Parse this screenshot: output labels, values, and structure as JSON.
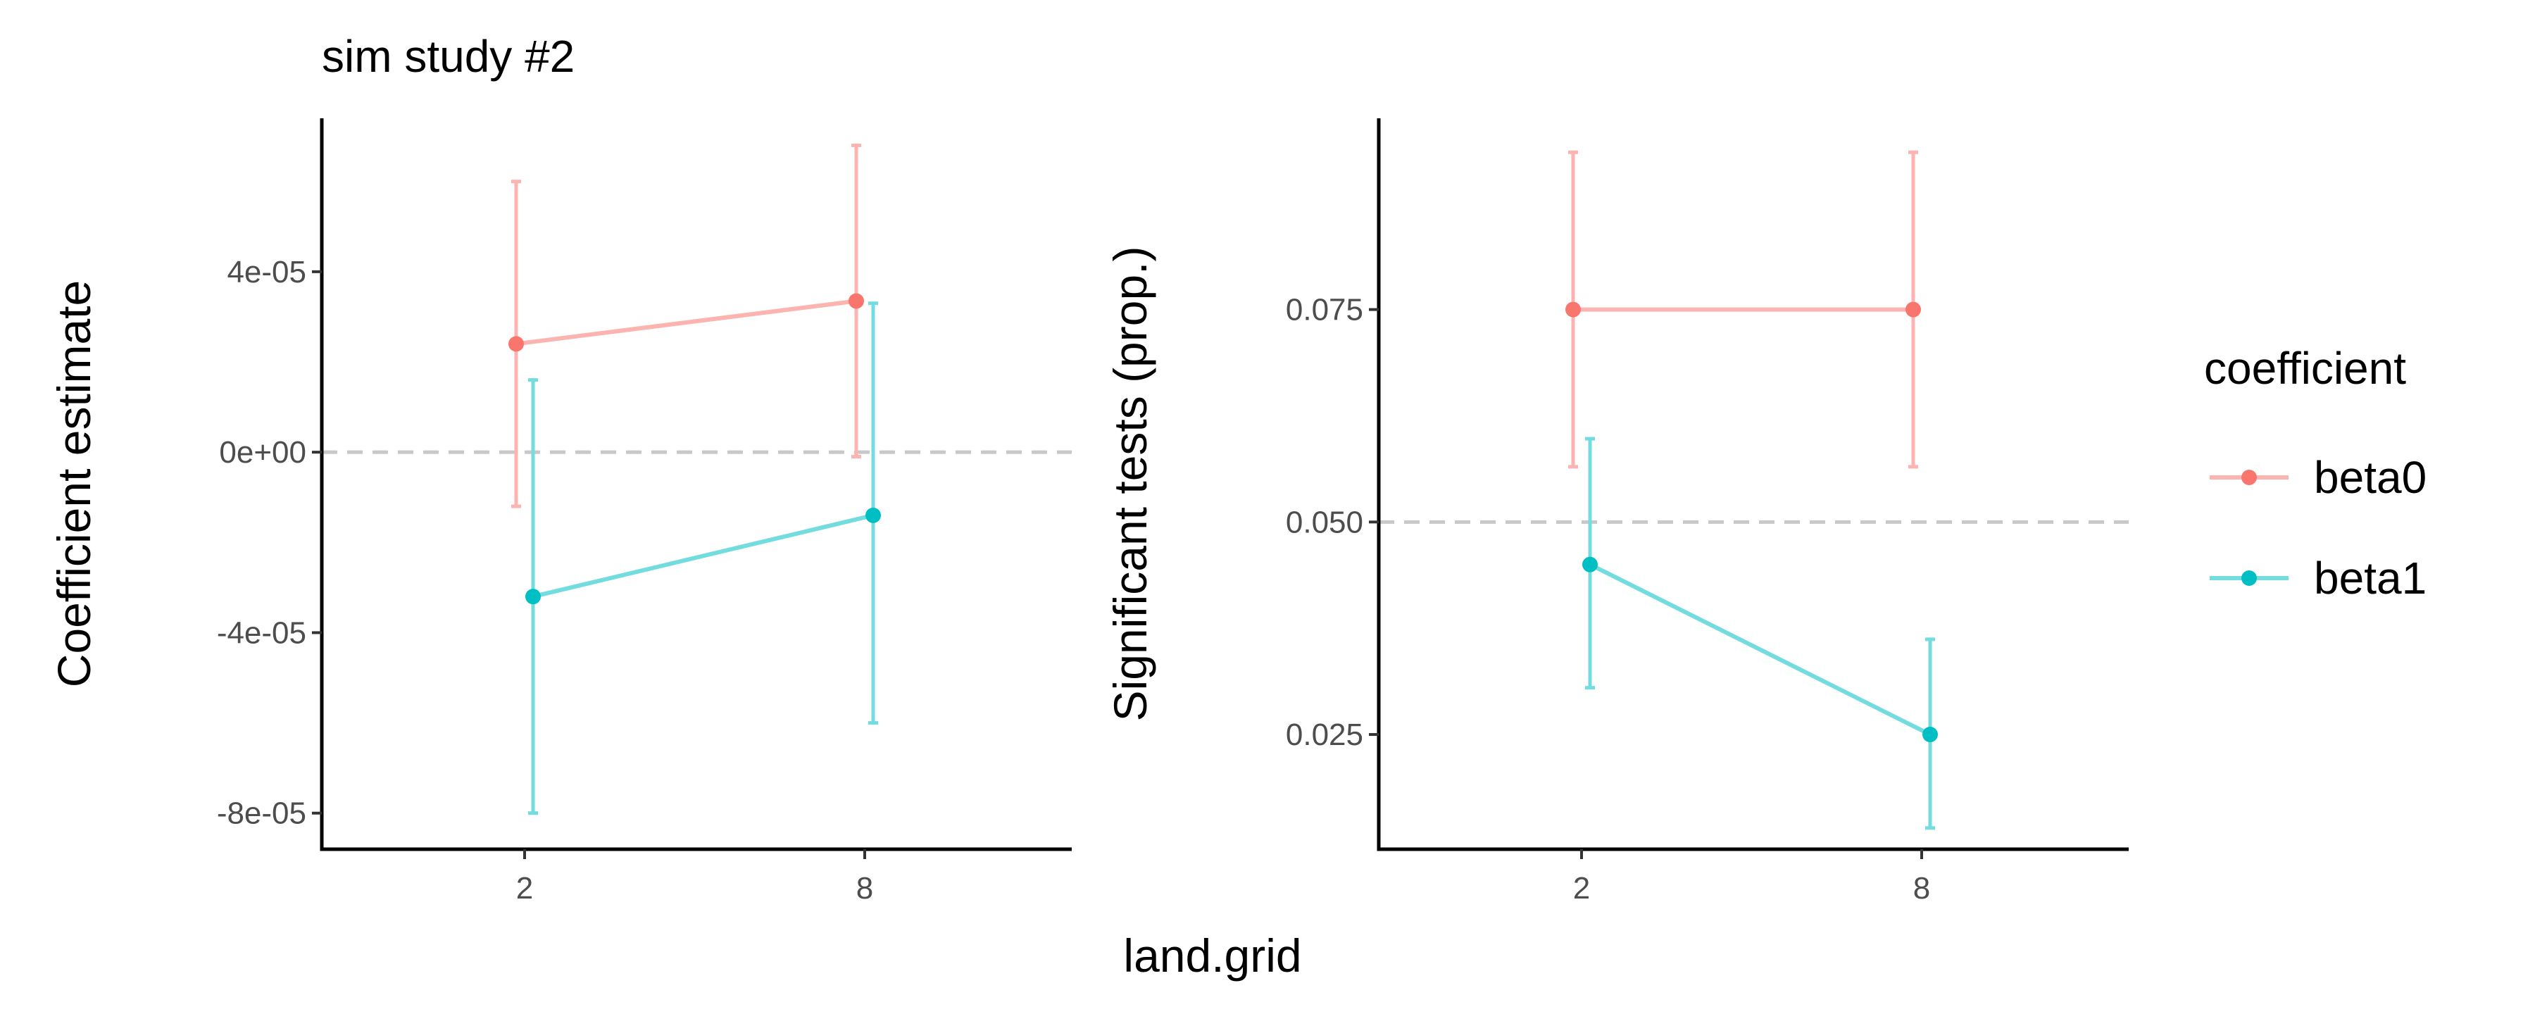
{
  "title": "sim study #2",
  "xlabel": "land.grid",
  "legend": {
    "title": "coefficient",
    "position": "right",
    "entries": [
      {
        "name": "beta0",
        "color": "#F8766D"
      },
      {
        "name": "beta1",
        "color": "#00BFC4"
      }
    ]
  },
  "chart_data": [
    {
      "type": "line",
      "title": "sim study #2",
      "xlabel": "",
      "ylabel": "Coefficient estimate",
      "x_categories": [
        "2",
        "8"
      ],
      "ylim": [
        -8.8e-05,
        7.4e-05
      ],
      "yticks": [
        -8e-05,
        -4e-05,
        0,
        4e-05
      ],
      "ytick_labels": [
        "-8e-05",
        "-4e-05",
        "0e+00",
        "4e-05"
      ],
      "reference_line": 0,
      "grid": false,
      "series": [
        {
          "name": "beta0",
          "color": "#F8766D",
          "x": [
            "2",
            "8"
          ],
          "values": [
            2.4e-05,
            3.35e-05
          ],
          "lower": [
            -1.2e-05,
            -1e-06
          ],
          "upper": [
            6e-05,
            6.8e-05
          ]
        },
        {
          "name": "beta1",
          "color": "#00BFC4",
          "x": [
            "2",
            "8"
          ],
          "values": [
            -3.2e-05,
            -1.4e-05
          ],
          "lower": [
            -8e-05,
            -6e-05
          ],
          "upper": [
            1.6e-05,
            3.3e-05
          ]
        }
      ]
    },
    {
      "type": "line",
      "title": "",
      "xlabel": "",
      "ylabel": "Significant tests (prop.)",
      "x_categories": [
        "2",
        "8"
      ],
      "ylim": [
        0.0115,
        0.0975
      ],
      "yticks": [
        0.025,
        0.05,
        0.075
      ],
      "ytick_labels": [
        "0.025",
        "0.050",
        "0.075"
      ],
      "reference_line": 0.05,
      "grid": false,
      "series": [
        {
          "name": "beta0",
          "color": "#F8766D",
          "x": [
            "2",
            "8"
          ],
          "values": [
            0.075,
            0.075
          ],
          "lower": [
            0.0565,
            0.0565
          ],
          "upper": [
            0.0935,
            0.0935
          ]
        },
        {
          "name": "beta1",
          "color": "#00BFC4",
          "x": [
            "2",
            "8"
          ],
          "values": [
            0.045,
            0.025
          ],
          "lower": [
            0.0305,
            0.014
          ],
          "upper": [
            0.0598,
            0.0362
          ]
        }
      ]
    }
  ]
}
